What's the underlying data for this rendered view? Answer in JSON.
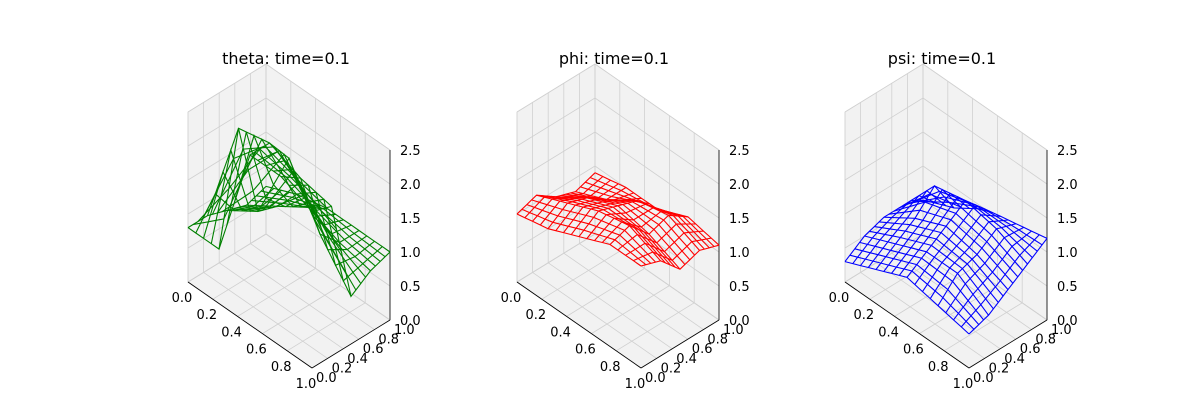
{
  "chart_data": [
    {
      "type": "wireframe",
      "title": "theta: time=0.1",
      "color": "#008000",
      "xlabel": "",
      "ylabel": "",
      "zlabel": "",
      "xlim": [
        0,
        1
      ],
      "ylim": [
        0,
        1
      ],
      "zlim": [
        0,
        2.5
      ],
      "xticks": [
        "0.0",
        "0.2",
        "0.4",
        "0.6",
        "0.8",
        "1.0"
      ],
      "yticks": [
        "0.0",
        "0.2",
        "0.4",
        "0.6",
        "0.8",
        "1.0"
      ],
      "zticks": [
        "0.0",
        "0.5",
        "1.0",
        "1.5",
        "2.0",
        "2.5"
      ],
      "grid": true,
      "surface": {
        "x": [
          0.0,
          0.25,
          0.5,
          0.75,
          1.0
        ],
        "y": [
          0.0,
          0.25,
          0.5,
          0.75,
          1.0
        ],
        "z": [
          [
            0.8,
            0.8,
            2.5,
            2.5,
            2.3
          ],
          [
            0.8,
            2.4,
            2.5,
            2.3,
            2.2
          ],
          [
            0.7,
            1.0,
            2.1,
            1.3,
            0.7
          ],
          [
            0.6,
            0.9,
            1.2,
            1.0,
            0.9
          ],
          [
            0.7,
            0.9,
            1.0,
            1.0,
            1.0
          ]
        ]
      }
    },
    {
      "type": "wireframe",
      "title": "phi: time=0.1",
      "color": "#ff0000",
      "xlabel": "",
      "ylabel": "",
      "zlabel": "",
      "xlim": [
        0,
        1
      ],
      "ylim": [
        0,
        1
      ],
      "zlim": [
        0,
        2.5
      ],
      "xticks": [
        "0.0",
        "0.2",
        "0.4",
        "0.6",
        "0.8",
        "1.0"
      ],
      "yticks": [
        "0.0",
        "0.2",
        "0.4",
        "0.6",
        "0.8",
        "1.0"
      ],
      "zticks": [
        "0.0",
        "0.5",
        "1.0",
        "1.5",
        "2.0",
        "2.5"
      ],
      "grid": true,
      "surface": {
        "x": [
          0.0,
          0.25,
          0.5,
          0.75,
          1.0
        ],
        "y": [
          0.0,
          0.25,
          0.5,
          0.75,
          1.0
        ],
        "z": [
          [
            1.0,
            1.1,
            1.3,
            1.5,
            1.5
          ],
          [
            1.1,
            1.3,
            1.5,
            1.6,
            1.4
          ],
          [
            0.9,
            1.2,
            1.4,
            1.3,
            1.1
          ],
          [
            0.8,
            1.0,
            1.3,
            1.4,
            1.2
          ],
          [
            0.9,
            1.0,
            1.0,
            1.2,
            1.1
          ]
        ]
      }
    },
    {
      "type": "wireframe",
      "title": "psi: time=0.1",
      "color": "#0000ff",
      "xlabel": "",
      "ylabel": "",
      "zlabel": "",
      "xlim": [
        0,
        1
      ],
      "ylim": [
        0,
        1
      ],
      "zlim": [
        0,
        2.5
      ],
      "xticks": [
        "0.0",
        "0.2",
        "0.4",
        "0.6",
        "0.8",
        "1.0"
      ],
      "yticks": [
        "0.0",
        "0.2",
        "0.4",
        "0.6",
        "0.8",
        "1.0"
      ],
      "zticks": [
        "0.0",
        "0.5",
        "1.0",
        "1.5",
        "2.0",
        "2.5"
      ],
      "grid": true,
      "surface": {
        "x": [
          0.0,
          0.25,
          0.5,
          0.75,
          1.0
        ],
        "y": [
          0.0,
          0.25,
          0.5,
          0.75,
          1.0
        ],
        "z": [
          [
            0.3,
            0.5,
            0.7,
            0.6,
            0.5
          ],
          [
            0.5,
            0.7,
            0.9,
            0.9,
            0.6
          ],
          [
            0.6,
            0.9,
            1.1,
            1.0,
            0.8
          ],
          [
            0.6,
            1.2,
            1.3,
            1.2,
            1.0
          ],
          [
            0.5,
            0.7,
            1.0,
            1.1,
            1.2
          ]
        ]
      }
    }
  ]
}
